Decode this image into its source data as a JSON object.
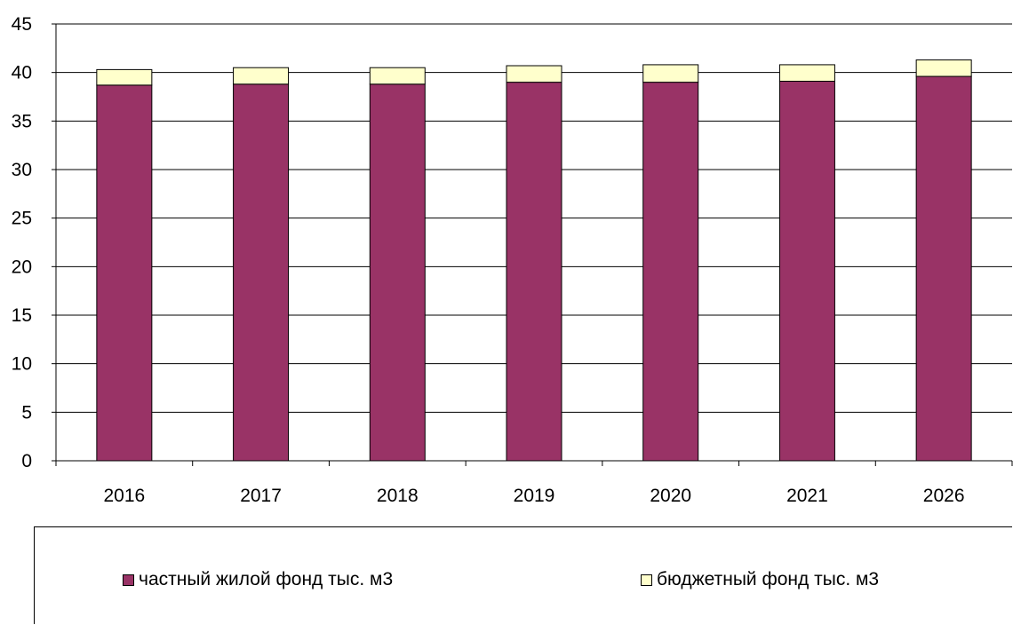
{
  "chart_data": {
    "type": "bar",
    "stacked": true,
    "categories": [
      "2016",
      "2017",
      "2018",
      "2019",
      "2020",
      "2021",
      "2026"
    ],
    "series": [
      {
        "name": "частный жилой фонд тыс. м3",
        "color": "#993366",
        "values": [
          38.7,
          38.8,
          38.8,
          39.0,
          39.0,
          39.1,
          39.6
        ]
      },
      {
        "name": "бюджетный фонд тыс. м3",
        "color": "#FFFFCC",
        "values": [
          1.6,
          1.7,
          1.7,
          1.7,
          1.8,
          1.7,
          1.7
        ]
      }
    ],
    "ylim": [
      0,
      45
    ],
    "yticks": [
      0,
      5,
      10,
      15,
      20,
      25,
      30,
      35,
      40,
      45
    ],
    "grid": true,
    "legend": "bottom"
  }
}
